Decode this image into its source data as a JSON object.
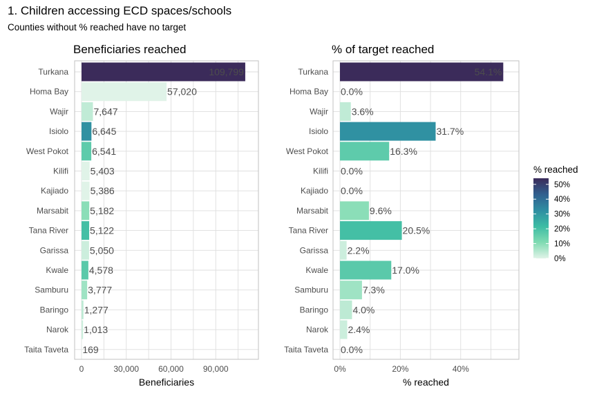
{
  "title": "1. Children accessing ECD spaces/schools",
  "subtitle": "Counties without % reached have no target",
  "chart_data": [
    {
      "type": "bar",
      "orientation": "horizontal",
      "title": "Beneficiaries reached",
      "xlabel": "Beneficiaries",
      "ylabel": "",
      "xlim": [
        0,
        114000
      ],
      "ticks": [
        0,
        30000,
        60000,
        90000
      ],
      "tick_labels": [
        "0",
        "30,000",
        "60,000",
        "90,000"
      ],
      "grid": true,
      "fill_by": "% reached",
      "categories": [
        "Turkana",
        "Homa Bay",
        "Wajir",
        "Isiolo",
        "West Pokot",
        "Kilifi",
        "Kajiado",
        "Marsabit",
        "Tana River",
        "Garissa",
        "Kwale",
        "Samburu",
        "Baringo",
        "Narok",
        "Taita Taveta"
      ],
      "values": [
        109799,
        57020,
        7647,
        6645,
        6541,
        5403,
        5386,
        5182,
        5122,
        5050,
        4578,
        3777,
        1277,
        1013,
        169
      ],
      "labels": [
        "109,799",
        "57,020",
        "7,647",
        "6,645",
        "6,541",
        "5,403",
        "5,386",
        "5,182",
        "5,122",
        "5,050",
        "4,578",
        "3,777",
        "1,277",
        "1,013",
        "169"
      ]
    },
    {
      "type": "bar",
      "orientation": "horizontal",
      "title": "% of target reached",
      "xlabel": "% reached",
      "ylabel": "",
      "xlim": [
        0,
        0.57
      ],
      "ticks": [
        0,
        0.2,
        0.4
      ],
      "tick_labels": [
        "0%",
        "20%",
        "40%"
      ],
      "grid": true,
      "categories": [
        "Turkana",
        "Homa Bay",
        "Wajir",
        "Isiolo",
        "West Pokot",
        "Kilifi",
        "Kajiado",
        "Marsabit",
        "Tana River",
        "Garissa",
        "Kwale",
        "Samburu",
        "Baringo",
        "Narok",
        "Taita Taveta"
      ],
      "values": [
        0.541,
        0.0,
        0.036,
        0.317,
        0.163,
        0.0,
        0.0,
        0.096,
        0.205,
        0.022,
        0.17,
        0.073,
        0.04,
        0.024,
        0.0
      ],
      "labels": [
        "54.1%",
        "0.0%",
        "3.6%",
        "31.7%",
        "16.3%",
        "0.0%",
        "0.0%",
        "9.6%",
        "20.5%",
        "2.2%",
        "17.0%",
        "7.3%",
        "4.0%",
        "2.4%",
        "0.0%"
      ]
    }
  ],
  "legend": {
    "title": "% reached",
    "position": "right",
    "ticks": [
      "50%",
      "40%",
      "30%",
      "20%",
      "10%",
      "0%"
    ],
    "tick_values": [
      0.5,
      0.4,
      0.3,
      0.2,
      0.1,
      0.0
    ],
    "colors": [
      "#e0f3e8",
      "#80dbb2",
      "#3dbca4",
      "#2f8ea2",
      "#31608f",
      "#3b2b5a"
    ]
  }
}
